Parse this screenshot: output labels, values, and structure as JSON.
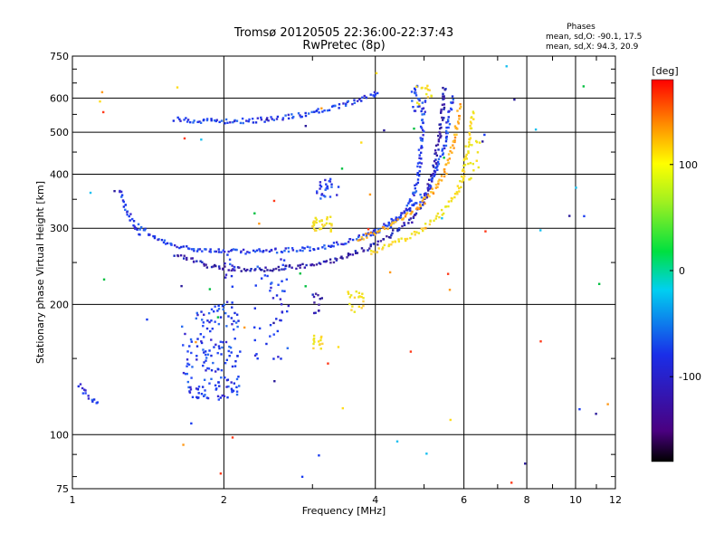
{
  "chart_data": {
    "type": "scatter",
    "title": "Tromsø 20120505 22:36:00-22:37:43",
    "subtitle": "RwPretec (8p)",
    "xlabel": "Frequency [MHz]",
    "ylabel": "Stationary phase Virtual Height [km]",
    "x_scale": "log",
    "y_scale": "log",
    "xlim": [
      1,
      12
    ],
    "ylim": [
      75,
      750
    ],
    "x_ticks": [
      1,
      2,
      4,
      6,
      8,
      10,
      12
    ],
    "x_tick_labels": [
      "1",
      "2",
      "4",
      "6",
      "8",
      "10",
      "12"
    ],
    "y_ticks": [
      75,
      100,
      200,
      300,
      400,
      500,
      600,
      750
    ],
    "y_tick_labels": [
      "75",
      "100",
      "200",
      "300",
      "400",
      "500",
      "600",
      "750"
    ],
    "grid": true,
    "phases_box": {
      "heading": "Phases",
      "line_o": "mean, sd,O: -90.1, 17.5",
      "line_x": "mean, sd,X:  94.3, 20.9"
    },
    "colorbar": {
      "label": "[deg]",
      "ticks": [
        "100",
        "0",
        "-100"
      ],
      "tick_values": [
        100,
        0,
        -100
      ],
      "range": [
        -180,
        180
      ]
    },
    "colors": {
      "blue_trace": "#1a3cf0",
      "navy_trace": "#2a1a9a",
      "orange_trace": "#ff9a1a",
      "yellow_trace": "#ffdc1a"
    },
    "traces": [
      {
        "kind": "curve",
        "color": "blue",
        "pts": [
          [
            1.35,
            305
          ],
          [
            1.45,
            285
          ],
          [
            1.6,
            272
          ],
          [
            1.8,
            268
          ],
          [
            2.0,
            265
          ],
          [
            2.3,
            265
          ],
          [
            2.7,
            267
          ],
          [
            3.1,
            270
          ],
          [
            3.5,
            278
          ],
          [
            3.9,
            290
          ],
          [
            4.3,
            305
          ],
          [
            4.6,
            330
          ],
          [
            4.8,
            365
          ],
          [
            4.9,
            420
          ],
          [
            4.95,
            500
          ],
          [
            5.0,
            600
          ]
        ]
      },
      {
        "kind": "curve",
        "color": "navy",
        "pts": [
          [
            1.6,
            262
          ],
          [
            1.8,
            248
          ],
          [
            2.0,
            242
          ],
          [
            2.3,
            240
          ],
          [
            2.7,
            243
          ],
          [
            3.1,
            248
          ],
          [
            3.5,
            258
          ],
          [
            3.9,
            272
          ],
          [
            4.3,
            290
          ],
          [
            4.7,
            312
          ],
          [
            5.0,
            345
          ],
          [
            5.2,
            400
          ],
          [
            5.35,
            480
          ],
          [
            5.45,
            560
          ],
          [
            5.5,
            640
          ]
        ]
      },
      {
        "kind": "curve",
        "color": "blue",
        "pts": [
          [
            3.9,
            290
          ],
          [
            4.2,
            305
          ],
          [
            4.5,
            320
          ],
          [
            4.8,
            340
          ],
          [
            5.1,
            370
          ],
          [
            5.3,
            410
          ],
          [
            5.5,
            470
          ],
          [
            5.6,
            540
          ],
          [
            5.7,
            610
          ]
        ]
      },
      {
        "kind": "curve",
        "color": "orange",
        "pts": [
          [
            3.7,
            282
          ],
          [
            4.0,
            293
          ],
          [
            4.3,
            305
          ],
          [
            4.6,
            318
          ],
          [
            4.9,
            338
          ],
          [
            5.2,
            365
          ],
          [
            5.5,
            405
          ],
          [
            5.7,
            460
          ],
          [
            5.8,
            520
          ],
          [
            5.9,
            580
          ]
        ]
      },
      {
        "kind": "curve",
        "color": "yellow",
        "pts": [
          [
            3.9,
            262
          ],
          [
            4.2,
            272
          ],
          [
            4.6,
            285
          ],
          [
            5.0,
            300
          ],
          [
            5.4,
            325
          ],
          [
            5.8,
            360
          ],
          [
            6.0,
            400
          ],
          [
            6.1,
            460
          ],
          [
            6.2,
            520
          ],
          [
            6.3,
            560
          ]
        ]
      },
      {
        "kind": "curve",
        "color": "blue",
        "pts": [
          [
            1.6,
            535
          ],
          [
            1.8,
            532
          ],
          [
            2.0,
            530
          ],
          [
            2.3,
            532
          ],
          [
            2.6,
            540
          ],
          [
            2.9,
            550
          ],
          [
            3.2,
            565
          ],
          [
            3.5,
            580
          ],
          [
            3.8,
            600
          ],
          [
            4.0,
            615
          ],
          [
            4.1,
            625
          ]
        ]
      },
      {
        "kind": "curve",
        "color": "blue",
        "pts": [
          [
            1.25,
            370
          ],
          [
            1.27,
            340
          ],
          [
            1.3,
            318
          ],
          [
            1.33,
            300
          ],
          [
            1.37,
            288
          ]
        ]
      },
      {
        "kind": "curve",
        "color": "blue",
        "pts": [
          [
            1.03,
            130
          ],
          [
            1.06,
            125
          ],
          [
            1.08,
            122
          ],
          [
            1.1,
            120
          ],
          [
            1.13,
            118
          ]
        ]
      },
      {
        "kind": "cluster",
        "color": "blue",
        "x": [
          1.65,
          2.15
        ],
        "y": [
          120,
          200
        ],
        "n": 160
      },
      {
        "kind": "cluster",
        "color": "blue",
        "x": [
          2.3,
          2.7
        ],
        "y": [
          145,
          260
        ],
        "n": 45
      },
      {
        "kind": "cluster",
        "color": "blue",
        "x": [
          2.0,
          2.1
        ],
        "y": [
          150,
          275
        ],
        "n": 18
      },
      {
        "kind": "cluster",
        "color": "navy",
        "x": [
          3.0,
          3.15
        ],
        "y": [
          190,
          215
        ],
        "n": 12
      },
      {
        "kind": "cluster",
        "color": "blue",
        "x": [
          3.05,
          3.4
        ],
        "y": [
          350,
          390
        ],
        "n": 25
      },
      {
        "kind": "cluster",
        "color": "yellow",
        "x": [
          3.0,
          3.3
        ],
        "y": [
          295,
          320
        ],
        "n": 30
      },
      {
        "kind": "cluster",
        "color": "yellow",
        "x": [
          3.5,
          3.8
        ],
        "y": [
          190,
          215
        ],
        "n": 20
      },
      {
        "kind": "cluster",
        "color": "yellow",
        "x": [
          3.0,
          3.15
        ],
        "y": [
          158,
          172
        ],
        "n": 14
      },
      {
        "kind": "cluster",
        "color": "blue",
        "x": [
          4.7,
          4.9
        ],
        "y": [
          560,
          640
        ],
        "n": 18
      },
      {
        "kind": "cluster",
        "color": "yellow",
        "x": [
          4.8,
          5.2
        ],
        "y": [
          580,
          650
        ],
        "n": 14
      },
      {
        "kind": "cluster",
        "color": "yellow",
        "x": [
          6.1,
          6.5
        ],
        "y": [
          380,
          480
        ],
        "n": 14
      }
    ]
  }
}
